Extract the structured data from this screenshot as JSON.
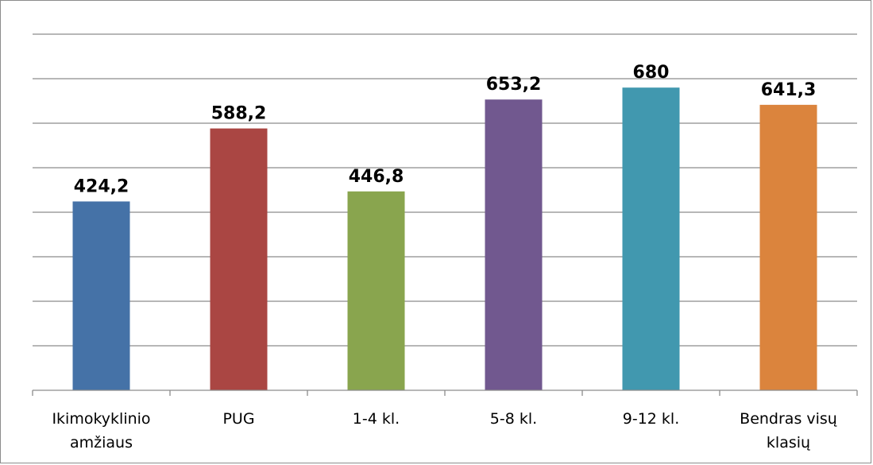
{
  "chart_data": {
    "type": "bar",
    "categories": [
      [
        "Ikimokyklinio",
        "amžiaus"
      ],
      [
        "PUG"
      ],
      [
        "1-4 kl."
      ],
      [
        "5-8 kl."
      ],
      [
        "9-12 kl."
      ],
      [
        "Bendras visų",
        "klasių"
      ]
    ],
    "values": [
      424.2,
      588.2,
      446.8,
      653.2,
      680,
      641.3
    ],
    "value_labels": [
      "424,2",
      "588,2",
      "446,8",
      "653,2",
      "680",
      "641,3"
    ],
    "colors": [
      "#4572a7",
      "#aa4643",
      "#89a54e",
      "#71588f",
      "#4198af",
      "#db843d"
    ],
    "ylim": [
      0,
      800
    ],
    "grid_step": 100,
    "grid": true,
    "title": "",
    "xlabel": "",
    "ylabel": "",
    "legend": "none"
  }
}
